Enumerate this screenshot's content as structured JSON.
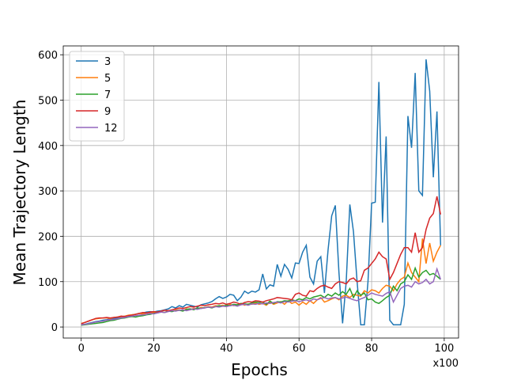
{
  "chart_data": {
    "type": "line",
    "xlabel": "Epochs",
    "ylabel": "Mean Trajectory Length",
    "x_offset_label": "x100",
    "x": [
      0,
      1,
      2,
      3,
      4,
      5,
      6,
      7,
      8,
      9,
      10,
      11,
      12,
      13,
      14,
      15,
      16,
      17,
      18,
      19,
      20,
      21,
      22,
      23,
      24,
      25,
      26,
      27,
      28,
      29,
      30,
      31,
      32,
      33,
      34,
      35,
      36,
      37,
      38,
      39,
      40,
      41,
      42,
      43,
      44,
      45,
      46,
      47,
      48,
      49,
      50,
      51,
      52,
      53,
      54,
      55,
      56,
      57,
      58,
      59,
      60,
      61,
      62,
      63,
      64,
      65,
      66,
      67,
      68,
      69,
      70,
      71,
      72,
      73,
      74,
      75,
      76,
      77,
      78,
      79,
      80,
      81,
      82,
      83,
      84,
      85,
      86,
      87,
      88,
      89,
      90,
      91,
      92,
      93,
      94,
      95,
      96,
      97,
      98,
      99
    ],
    "series": [
      {
        "name": "3",
        "color": "#1f77b4",
        "values": [
          5,
          6,
          8,
          10,
          12,
          13,
          15,
          16,
          18,
          19,
          20,
          22,
          24,
          25,
          27,
          28,
          30,
          31,
          33,
          34,
          33,
          35,
          36,
          38,
          40,
          45,
          42,
          47,
          44,
          50,
          48,
          46,
          44,
          49,
          51,
          53,
          56,
          62,
          67,
          63,
          66,
          72,
          70,
          58,
          66,
          79,
          74,
          79,
          77,
          82,
          117,
          84,
          93,
          90,
          138,
          112,
          138,
          127,
          108,
          141,
          140,
          165,
          180,
          110,
          95,
          145,
          155,
          75,
          170,
          245,
          268,
          120,
          8,
          100,
          270,
          210,
          100,
          5,
          5,
          100,
          273,
          275,
          540,
          230,
          420,
          15,
          5,
          5,
          5,
          50,
          465,
          395,
          560,
          300,
          290,
          590,
          520,
          330,
          475,
          180
        ]
      },
      {
        "name": "5",
        "color": "#ff7f0e",
        "values": [
          8,
          10,
          13,
          16,
          18,
          19,
          20,
          20,
          19,
          21,
          22,
          23,
          24,
          26,
          27,
          28,
          30,
          29,
          31,
          32,
          31,
          33,
          34,
          32,
          36,
          35,
          37,
          38,
          36,
          40,
          38,
          41,
          40,
          43,
          42,
          45,
          44,
          47,
          46,
          48,
          45,
          50,
          47,
          49,
          52,
          48,
          51,
          50,
          53,
          50,
          52,
          48,
          55,
          50,
          53,
          56,
          50,
          58,
          52,
          55,
          48,
          55,
          50,
          58,
          52,
          60,
          65,
          55,
          58,
          62,
          65,
          60,
          68,
          70,
          65,
          72,
          70,
          68,
          80,
          75,
          82,
          80,
          75,
          85,
          92,
          90,
          80,
          95,
          105,
          110,
          141,
          120,
          110,
          100,
          195,
          140,
          185,
          145,
          165,
          180
        ]
      },
      {
        "name": "7",
        "color": "#2ca02c",
        "values": [
          4,
          5,
          6,
          7,
          8,
          9,
          10,
          12,
          14,
          15,
          17,
          19,
          20,
          22,
          23,
          22,
          24,
          25,
          27,
          28,
          30,
          31,
          33,
          32,
          35,
          34,
          36,
          37,
          35,
          39,
          40,
          38,
          42,
          41,
          43,
          44,
          42,
          45,
          47,
          46,
          48,
          47,
          50,
          49,
          52,
          51,
          50,
          53,
          55,
          54,
          55,
          50,
          57,
          52,
          56,
          55,
          58,
          57,
          60,
          58,
          62,
          60,
          65,
          62,
          66,
          68,
          70,
          65,
          72,
          68,
          75,
          70,
          78,
          72,
          85,
          65,
          80,
          70,
          75,
          60,
          62,
          55,
          52,
          58,
          65,
          70,
          90,
          80,
          95,
          100,
          115,
          105,
          130,
          110,
          120,
          125,
          115,
          118,
          112,
          105
        ]
      },
      {
        "name": "9",
        "color": "#d62728",
        "values": [
          7,
          10,
          13,
          16,
          19,
          20,
          20,
          21,
          20,
          21,
          22,
          24,
          23,
          25,
          26,
          28,
          30,
          32,
          31,
          33,
          34,
          33,
          35,
          37,
          36,
          38,
          40,
          42,
          41,
          43,
          45,
          44,
          46,
          48,
          47,
          49,
          50,
          52,
          51,
          53,
          50,
          52,
          55,
          53,
          50,
          54,
          56,
          55,
          58,
          57,
          55,
          58,
          60,
          62,
          65,
          64,
          63,
          62,
          60,
          72,
          75,
          70,
          68,
          80,
          78,
          85,
          90,
          92,
          88,
          85,
          95,
          100,
          98,
          95,
          105,
          108,
          100,
          102,
          125,
          130,
          140,
          150,
          165,
          155,
          150,
          105,
          120,
          140,
          160,
          175,
          175,
          165,
          208,
          165,
          175,
          215,
          240,
          250,
          288,
          248
        ]
      },
      {
        "name": "12",
        "color": "#9467bd",
        "values": [
          5,
          6,
          7,
          9,
          11,
          12,
          13,
          15,
          16,
          17,
          18,
          20,
          21,
          23,
          24,
          25,
          26,
          27,
          28,
          30,
          29,
          31,
          33,
          32,
          34,
          36,
          35,
          37,
          38,
          36,
          38,
          40,
          39,
          41,
          42,
          44,
          43,
          45,
          44,
          46,
          45,
          47,
          48,
          46,
          49,
          50,
          48,
          51,
          50,
          52,
          51,
          53,
          52,
          54,
          55,
          53,
          56,
          55,
          57,
          58,
          56,
          58,
          60,
          57,
          62,
          60,
          63,
          65,
          62,
          64,
          65,
          62,
          64,
          66,
          63,
          60,
          58,
          62,
          65,
          70,
          75,
          72,
          70,
          68,
          74,
          78,
          55,
          70,
          85,
          90,
          92,
          88,
          100,
          95,
          98,
          105,
          95,
          100,
          128,
          105
        ]
      }
    ],
    "xlim": [
      -4.95,
      103.95
    ],
    "xticks": [
      0,
      20,
      40,
      60,
      80,
      100
    ],
    "ylim": [
      -24.3,
      619.5
    ],
    "yticks": [
      0,
      100,
      200,
      300,
      400,
      500,
      600
    ],
    "grid": true,
    "legend": "upper left"
  }
}
